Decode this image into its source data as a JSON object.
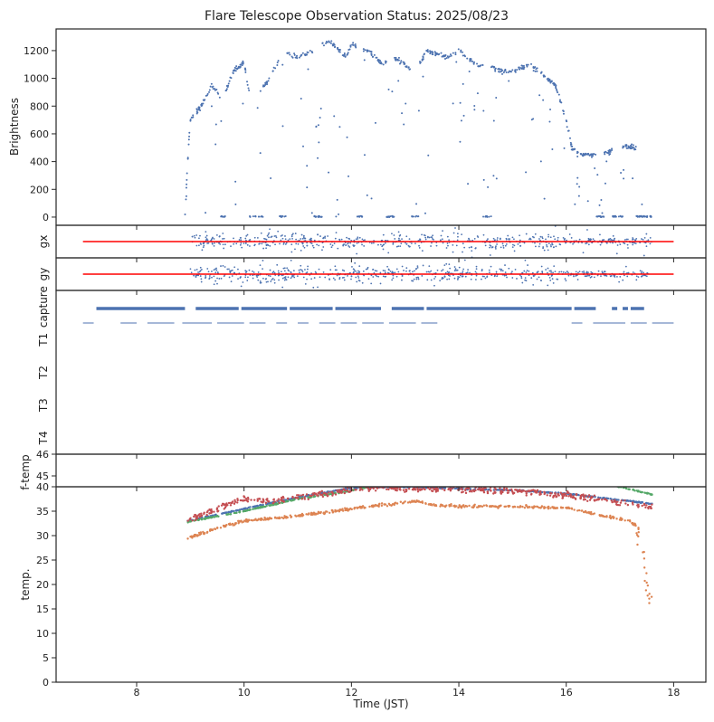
{
  "chart_data": {
    "type": "scatter",
    "title": "Flare Telescope Observation Status: 2025/08/23",
    "xlabel": "Time (JST)",
    "xlim": [
      6.5,
      18.6
    ],
    "xticks": [
      8,
      10,
      12,
      14,
      16,
      18
    ],
    "colors": {
      "blue": "#4c72b0",
      "orange": "#dd8452",
      "green": "#55a868",
      "red": "#c44e52",
      "ref": "#ff0000"
    },
    "panels": {
      "brightness": {
        "ylabel": "Brightness",
        "ylim": [
          -59,
          1356
        ],
        "yticks": [
          0,
          200,
          400,
          600,
          800,
          1000,
          1200
        ],
        "envelope": [
          [
            8.9,
            0
          ],
          [
            8.95,
            400
          ],
          [
            9.0,
            700
          ],
          [
            9.2,
            800
          ],
          [
            9.4,
            950
          ],
          [
            9.6,
            850
          ],
          [
            9.8,
            1050
          ],
          [
            10.0,
            1110
          ],
          [
            10.1,
            900
          ],
          [
            10.4,
            950
          ],
          [
            10.6,
            1100
          ],
          [
            10.8,
            1180
          ],
          [
            11.0,
            1150
          ],
          [
            11.3,
            1200
          ],
          [
            11.6,
            1270
          ],
          [
            11.9,
            1150
          ],
          [
            12.0,
            1250
          ],
          [
            12.3,
            1200
          ],
          [
            12.6,
            1100
          ],
          [
            12.8,
            1150
          ],
          [
            13.2,
            1050
          ],
          [
            13.4,
            1200
          ],
          [
            13.8,
            1150
          ],
          [
            14.0,
            1200
          ],
          [
            14.3,
            1100
          ],
          [
            14.5,
            1100
          ],
          [
            14.8,
            1050
          ],
          [
            15.0,
            1050
          ],
          [
            15.3,
            1100
          ],
          [
            15.5,
            1050
          ],
          [
            15.8,
            950
          ],
          [
            16.0,
            700
          ],
          [
            16.1,
            500
          ],
          [
            16.3,
            450
          ],
          [
            16.5,
            450
          ],
          [
            16.8,
            470
          ],
          [
            17.0,
            520
          ],
          [
            17.3,
            500
          ],
          [
            17.45,
            0
          ],
          [
            17.6,
            0
          ]
        ],
        "zero_segments": [
          [
            9.55,
            9.65
          ],
          [
            10.1,
            10.35
          ],
          [
            10.65,
            10.8
          ],
          [
            11.3,
            11.45
          ],
          [
            12.1,
            12.2
          ],
          [
            12.65,
            12.8
          ],
          [
            13.1,
            13.25
          ],
          [
            14.45,
            14.6
          ],
          [
            16.55,
            16.7
          ],
          [
            16.85,
            17.05
          ],
          [
            17.3,
            17.6
          ]
        ]
      },
      "gx": {
        "ylabel": "gx",
        "reference_range": [
          7.0,
          18.0
        ],
        "data_range": [
          9.0,
          17.6
        ]
      },
      "gy": {
        "ylabel": "gy",
        "reference_range": [
          7.0,
          18.0
        ],
        "data_range": [
          9.0,
          17.6
        ]
      },
      "status": {
        "categories": [
          "capture",
          "T1",
          "T2",
          "T3",
          "T4"
        ],
        "capture_segments": [
          [
            7.25,
            8.9
          ],
          [
            9.1,
            9.9
          ],
          [
            9.95,
            10.8
          ],
          [
            10.85,
            11.65
          ],
          [
            11.7,
            12.55
          ],
          [
            12.75,
            13.35
          ],
          [
            13.4,
            16.1
          ],
          [
            16.15,
            16.55
          ],
          [
            16.85,
            16.95
          ],
          [
            17.05,
            17.15
          ],
          [
            17.2,
            17.45
          ]
        ],
        "secondary_segments": [
          [
            7.0,
            7.2
          ],
          [
            7.7,
            8.0
          ],
          [
            8.2,
            8.7
          ],
          [
            8.85,
            9.4
          ],
          [
            9.5,
            10.0
          ],
          [
            10.1,
            10.4
          ],
          [
            10.6,
            10.8
          ],
          [
            11.0,
            11.2
          ],
          [
            11.4,
            11.7
          ],
          [
            11.8,
            12.1
          ],
          [
            12.2,
            12.6
          ],
          [
            12.7,
            13.2
          ],
          [
            13.3,
            13.6
          ],
          [
            16.1,
            16.3
          ],
          [
            16.5,
            17.1
          ],
          [
            17.2,
            17.5
          ],
          [
            17.6,
            18.0
          ]
        ]
      },
      "ftemp": {
        "ylabel": "f-temp",
        "ylim": [
          44.5,
          46
        ],
        "yticks": [
          45,
          46
        ]
      },
      "temp": {
        "ylabel": "temp.",
        "ylim": [
          0,
          40
        ],
        "yticks": [
          0,
          5,
          10,
          15,
          20,
          25,
          30,
          35,
          40
        ],
        "series": [
          {
            "name": "blue",
            "points": [
              [
                8.95,
                33
              ],
              [
                10,
                35.5
              ],
              [
                11,
                37.8
              ],
              [
                12,
                39.8
              ],
              [
                13,
                40
              ],
              [
                14,
                39.6
              ],
              [
                15,
                39.3
              ],
              [
                16,
                38.6
              ],
              [
                17,
                37.3
              ],
              [
                17.6,
                36.5
              ]
            ]
          },
          {
            "name": "green",
            "points": [
              [
                8.95,
                32.8
              ],
              [
                10,
                35
              ],
              [
                11,
                37.5
              ],
              [
                12,
                39.2
              ],
              [
                12.5,
                40.5
              ]
            ]
          },
          {
            "name": "green",
            "points": [
              [
                16.8,
                40.3
              ],
              [
                17.0,
                40
              ],
              [
                17.3,
                39.2
              ],
              [
                17.6,
                38.4
              ]
            ]
          },
          {
            "name": "red",
            "points": [
              [
                8.95,
                33
              ],
              [
                9.5,
                35.5
              ],
              [
                10,
                37.5
              ],
              [
                10.5,
                37
              ],
              [
                11,
                38
              ],
              [
                11.5,
                38.5
              ],
              [
                12,
                39.5
              ],
              [
                12.5,
                40
              ],
              [
                13,
                39.5
              ],
              [
                14,
                39.5
              ],
              [
                15,
                39.2
              ],
              [
                16,
                38.3
              ],
              [
                17,
                36.8
              ],
              [
                17.6,
                35.8
              ]
            ]
          },
          {
            "name": "orange",
            "points": [
              [
                8.95,
                29.5
              ],
              [
                9.5,
                31.5
              ],
              [
                10,
                33
              ],
              [
                11,
                34
              ],
              [
                12,
                35.5
              ],
              [
                12.5,
                36.2
              ],
              [
                13.2,
                37
              ],
              [
                13.5,
                36.3
              ],
              [
                14,
                36
              ],
              [
                15,
                36
              ],
              [
                16,
                35.7
              ],
              [
                16.5,
                34.5
              ],
              [
                17.2,
                33
              ],
              [
                17.3,
                32
              ],
              [
                17.4,
                28
              ],
              [
                17.5,
                20
              ],
              [
                17.6,
                15
              ]
            ]
          }
        ]
      }
    }
  }
}
